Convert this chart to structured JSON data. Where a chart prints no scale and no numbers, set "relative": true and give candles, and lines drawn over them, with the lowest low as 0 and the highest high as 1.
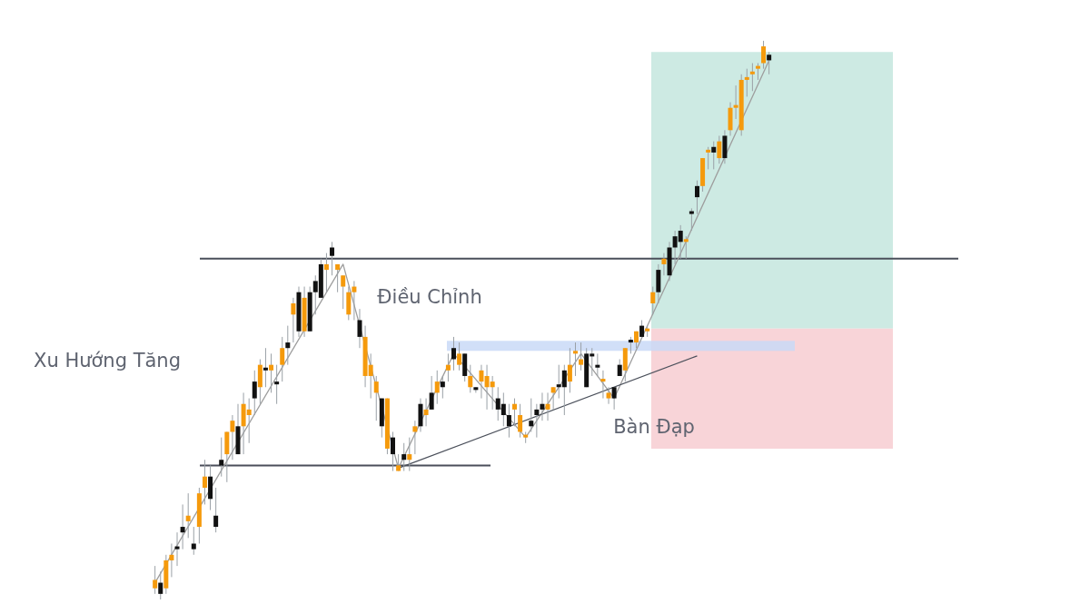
{
  "chart_data": {
    "type": "candlestick",
    "relative": true,
    "categories": [
      null,
      null,
      null,
      null,
      null,
      null,
      null,
      null,
      null,
      null,
      null,
      null,
      null,
      null,
      null,
      null,
      null,
      null,
      null,
      null,
      null,
      null,
      null,
      null,
      null,
      null,
      null,
      null,
      null,
      null,
      null,
      null,
      null,
      null,
      null,
      null,
      null,
      null,
      null,
      null,
      null,
      null,
      null,
      null,
      null,
      null,
      null,
      null,
      null,
      null,
      null,
      null,
      null,
      null,
      null,
      null,
      null,
      null,
      null,
      null,
      null,
      null,
      null,
      null,
      null,
      null,
      null,
      null,
      null,
      null,
      null,
      null,
      null,
      null,
      null,
      null,
      null,
      null,
      null,
      null,
      null,
      null,
      null,
      null,
      null,
      null,
      null,
      null,
      null,
      null,
      null,
      null,
      null,
      null,
      null,
      null,
      null,
      null,
      null,
      null,
      null,
      null,
      null,
      null,
      null,
      null,
      null,
      null,
      null,
      null,
      null,
      null
    ],
    "ohlc": [
      [
        0.02,
        0.06,
        0.01,
        0.035
      ],
      [
        0.03,
        0.05,
        0.0,
        0.01
      ],
      [
        0.02,
        0.08,
        0.01,
        0.07
      ],
      [
        0.07,
        0.1,
        0.04,
        0.08
      ],
      [
        0.095,
        0.12,
        0.06,
        0.09
      ],
      [
        0.13,
        0.17,
        0.09,
        0.12
      ],
      [
        0.14,
        0.19,
        0.11,
        0.15
      ],
      [
        0.1,
        0.13,
        0.08,
        0.09
      ],
      [
        0.13,
        0.2,
        0.1,
        0.19
      ],
      [
        0.2,
        0.25,
        0.17,
        0.22
      ],
      [
        0.22,
        0.24,
        0.16,
        0.18
      ],
      [
        0.15,
        0.2,
        0.12,
        0.13
      ],
      [
        0.25,
        0.29,
        0.22,
        0.24
      ],
      [
        0.26,
        0.3,
        0.21,
        0.3
      ],
      [
        0.3,
        0.33,
        0.25,
        0.32
      ],
      [
        0.31,
        0.35,
        0.26,
        0.26
      ],
      [
        0.31,
        0.37,
        0.26,
        0.35
      ],
      [
        0.33,
        0.36,
        0.28,
        0.34
      ],
      [
        0.39,
        0.41,
        0.33,
        0.36
      ],
      [
        0.38,
        0.43,
        0.35,
        0.42
      ],
      [
        0.415,
        0.45,
        0.38,
        0.41
      ],
      [
        0.41,
        0.44,
        0.37,
        0.42
      ],
      [
        0.39,
        0.42,
        0.35,
        0.385
      ],
      [
        0.42,
        0.47,
        0.39,
        0.45
      ],
      [
        0.46,
        0.49,
        0.42,
        0.45
      ],
      [
        0.51,
        0.54,
        0.46,
        0.53
      ],
      [
        0.55,
        0.56,
        0.47,
        0.48
      ],
      [
        0.48,
        0.56,
        0.47,
        0.54
      ],
      [
        0.55,
        0.56,
        0.48,
        0.48
      ],
      [
        0.57,
        0.58,
        0.51,
        0.55
      ],
      [
        0.6,
        0.61,
        0.54,
        0.54
      ],
      [
        0.59,
        0.62,
        0.55,
        0.6
      ],
      [
        0.63,
        0.64,
        0.58,
        0.615
      ],
      [
        0.59,
        0.6,
        0.55,
        0.6
      ],
      [
        0.56,
        0.58,
        0.52,
        0.58
      ],
      [
        0.51,
        0.56,
        0.5,
        0.55
      ],
      [
        0.55,
        0.57,
        0.5,
        0.56
      ],
      [
        0.5,
        0.52,
        0.45,
        0.47
      ],
      [
        0.4,
        0.49,
        0.38,
        0.47
      ],
      [
        0.4,
        0.44,
        0.36,
        0.42
      ],
      [
        0.37,
        0.4,
        0.32,
        0.39
      ],
      [
        0.36,
        0.36,
        0.29,
        0.31
      ],
      [
        0.27,
        0.36,
        0.26,
        0.36
      ],
      [
        0.29,
        0.3,
        0.23,
        0.26
      ],
      [
        0.23,
        0.26,
        0.23,
        0.24
      ],
      [
        0.26,
        0.28,
        0.23,
        0.25
      ],
      [
        0.25,
        0.29,
        0.23,
        0.26
      ],
      [
        0.3,
        0.32,
        0.26,
        0.31
      ],
      [
        0.35,
        0.36,
        0.3,
        0.31
      ],
      [
        0.33,
        0.36,
        0.31,
        0.34
      ],
      [
        0.37,
        0.4,
        0.34,
        0.34
      ],
      [
        0.37,
        0.41,
        0.35,
        0.39
      ],
      [
        0.39,
        0.4,
        0.36,
        0.38
      ],
      [
        0.41,
        0.44,
        0.39,
        0.42
      ],
      [
        0.45,
        0.47,
        0.41,
        0.43
      ],
      [
        0.42,
        0.46,
        0.41,
        0.44
      ],
      [
        0.44,
        0.44,
        0.39,
        0.4
      ],
      [
        0.38,
        0.42,
        0.37,
        0.4
      ],
      [
        0.38,
        0.38,
        0.37,
        0.375
      ],
      [
        0.39,
        0.42,
        0.36,
        0.41
      ],
      [
        0.38,
        0.42,
        0.34,
        0.4
      ],
      [
        0.38,
        0.4,
        0.34,
        0.39
      ],
      [
        0.36,
        0.38,
        0.32,
        0.34
      ],
      [
        0.35,
        0.37,
        0.31,
        0.33
      ],
      [
        0.33,
        0.35,
        0.29,
        0.31
      ],
      [
        0.34,
        0.36,
        0.31,
        0.35
      ],
      [
        0.3,
        0.35,
        0.29,
        0.33
      ],
      [
        0.29,
        0.3,
        0.28,
        0.295
      ],
      [
        0.32,
        0.36,
        0.3,
        0.31
      ],
      [
        0.34,
        0.35,
        0.29,
        0.33
      ],
      [
        0.35,
        0.37,
        0.32,
        0.34
      ],
      [
        0.34,
        0.37,
        0.32,
        0.35
      ],
      [
        0.37,
        0.38,
        0.34,
        0.38
      ],
      [
        0.385,
        0.42,
        0.36,
        0.38
      ],
      [
        0.41,
        0.42,
        0.33,
        0.38
      ],
      [
        0.39,
        0.45,
        0.37,
        0.42
      ],
      [
        0.44,
        0.46,
        0.4,
        0.445
      ],
      [
        0.42,
        0.46,
        0.41,
        0.43
      ],
      [
        0.44,
        0.45,
        0.38,
        0.38
      ],
      [
        0.44,
        0.45,
        0.4,
        0.435
      ],
      [
        0.42,
        0.44,
        0.4,
        0.415
      ],
      [
        0.39,
        0.41,
        0.36,
        0.395
      ],
      [
        0.36,
        0.38,
        0.35,
        0.37
      ],
      [
        0.38,
        0.38,
        0.34,
        0.36
      ],
      [
        0.42,
        0.43,
        0.4,
        0.4
      ],
      [
        0.41,
        0.45,
        0.39,
        0.45
      ],
      [
        0.465,
        0.47,
        0.44,
        0.46
      ],
      [
        0.46,
        0.48,
        0.45,
        0.48
      ],
      [
        0.49,
        0.5,
        0.47,
        0.47
      ],
      [
        0.48,
        0.49,
        0.47,
        0.485
      ],
      [
        0.53,
        0.56,
        0.51,
        0.55
      ],
      [
        0.59,
        0.6,
        0.53,
        0.55
      ],
      [
        0.6,
        0.62,
        0.58,
        0.61
      ],
      [
        0.63,
        0.64,
        0.57,
        0.58
      ],
      [
        0.65,
        0.66,
        0.6,
        0.63
      ],
      [
        0.66,
        0.67,
        0.61,
        0.64
      ],
      [
        0.64,
        0.65,
        0.61,
        0.645
      ],
      [
        0.695,
        0.7,
        0.66,
        0.69
      ],
      [
        0.74,
        0.75,
        0.69,
        0.72
      ],
      [
        0.74,
        0.79,
        0.73,
        0.79
      ],
      [
        0.8,
        0.81,
        0.77,
        0.805
      ],
      [
        0.81,
        0.82,
        0.77,
        0.8
      ],
      [
        0.79,
        0.83,
        0.78,
        0.82
      ],
      [
        0.83,
        0.84,
        0.78,
        0.79
      ],
      [
        0.84,
        0.89,
        0.83,
        0.88
      ],
      [
        0.88,
        0.92,
        0.86,
        0.885
      ],
      [
        0.84,
        0.94,
        0.83,
        0.93
      ],
      [
        0.93,
        0.95,
        0.9,
        0.935
      ],
      [
        0.94,
        0.96,
        0.91,
        0.945
      ],
      [
        0.95,
        0.96,
        0.93,
        0.955
      ],
      [
        0.96,
        1.0,
        0.95,
        0.99
      ],
      [
        0.975,
        0.98,
        0.94,
        0.965
      ]
    ],
    "colors": [
      "#f59a0c",
      "#111111",
      "#f59a0c",
      "#f59a0c",
      "#111111",
      "#111111",
      "#f59a0c",
      "#111111",
      "#f59a0c",
      "#f59a0c",
      "#111111",
      "#111111",
      "#111111",
      "#f59a0c",
      "#f59a0c",
      "#111111",
      "#f59a0c",
      "#f59a0c",
      "#111111",
      "#f59a0c",
      "#111111",
      "#f59a0c",
      "#111111",
      "#f59a0c",
      "#111111",
      "#f59a0c",
      "#111111",
      "#f59a0c",
      "#111111",
      "#111111",
      "#111111",
      "#f59a0c",
      "#111111",
      "#f59a0c",
      "#f59a0c",
      "#f59a0c",
      "#f59a0c",
      "#111111",
      "#f59a0c",
      "#f59a0c",
      "#f59a0c",
      "#111111",
      "#f59a0c",
      "#111111",
      "#f59a0c",
      "#111111",
      "#f59a0c",
      "#f59a0c",
      "#111111",
      "#f59a0c",
      "#111111",
      "#f59a0c",
      "#111111",
      "#f59a0c",
      "#111111",
      "#f59a0c",
      "#111111",
      "#f59a0c",
      "#111111",
      "#f59a0c",
      "#f59a0c",
      "#f59a0c",
      "#111111",
      "#111111",
      "#111111",
      "#f59a0c",
      "#f59a0c",
      "#f59a0c",
      "#111111",
      "#111111",
      "#111111",
      "#f59a0c",
      "#f59a0c",
      "#111111",
      "#111111",
      "#f59a0c",
      "#f59a0c",
      "#f59a0c",
      "#111111",
      "#111111",
      "#111111",
      "#f59a0c",
      "#f59a0c",
      "#111111",
      "#111111",
      "#f59a0c",
      "#111111",
      "#f59a0c",
      "#111111",
      "#f59a0c",
      "#f59a0c",
      "#111111",
      "#f59a0c",
      "#111111",
      "#111111",
      "#111111",
      "#f59a0c",
      "#111111",
      "#111111",
      "#f59a0c",
      "#f59a0c",
      "#111111",
      "#f59a0c",
      "#111111",
      "#f59a0c",
      "#f59a0c",
      "#f59a0c",
      "#f59a0c",
      "#f59a0c",
      "#f59a0c",
      "#f59a0c",
      "#111111"
    ],
    "series": [
      {
        "type": "line",
        "color": "#9e9e9e",
        "values": [
          0.03,
          null,
          null,
          null,
          null,
          null,
          null,
          null,
          null,
          null,
          null,
          null,
          null,
          null,
          null,
          null,
          null,
          null,
          null,
          null,
          null,
          null,
          null,
          null,
          null,
          null,
          null,
          null,
          null,
          null,
          null,
          null,
          null,
          null,
          0.6,
          null,
          null,
          null,
          null,
          null,
          null,
          null,
          null,
          null,
          0.235,
          null,
          null,
          null,
          null,
          null,
          null,
          null,
          null,
          null,
          0.44,
          null,
          null,
          null,
          null,
          null,
          null,
          null,
          null,
          null,
          null,
          null,
          null,
          0.29,
          null,
          null,
          null,
          null,
          null,
          null,
          null,
          null,
          null,
          0.44,
          null,
          null,
          null,
          null,
          null,
          0.36,
          null,
          null,
          null,
          null,
          null,
          null,
          null,
          null,
          null,
          null,
          null,
          null,
          null,
          null,
          null,
          null,
          null,
          null,
          null,
          null,
          null,
          null,
          null,
          null,
          null,
          null,
          null,
          0.965
        ]
      },
      {
        "type": "line",
        "color": "#4a4f5a",
        "values": [
          null,
          null,
          null,
          null,
          null,
          null,
          null,
          null,
          null,
          null,
          null,
          null,
          null,
          null,
          null,
          null,
          null,
          null,
          null,
          null,
          null,
          null,
          null,
          null,
          null,
          null,
          null,
          null,
          null,
          null,
          null,
          null,
          null,
          null,
          null,
          null,
          null,
          null,
          null,
          null,
          null,
          null,
          null,
          null,
          0.235,
          null,
          null,
          null,
          null,
          null,
          null,
          null,
          null,
          null,
          null,
          null,
          null,
          null,
          null,
          null,
          null,
          null,
          null,
          null,
          null,
          null,
          null,
          null,
          null,
          null,
          null,
          null,
          null,
          null,
          null,
          null,
          null,
          null,
          null,
          null,
          null,
          null,
          null,
          null,
          null,
          null,
          null,
          null,
          null,
          null,
          null,
          null,
          null,
          null,
          null,
          null,
          null,
          null,
          0.436,
          null,
          null,
          null,
          null,
          null,
          null,
          null,
          null,
          null,
          null,
          null,
          null,
          null
        ]
      }
    ],
    "ref_lines": [
      {
        "axis": "y",
        "value": 0.61,
        "color": "#4a4f5a"
      },
      {
        "axis": "y",
        "value": 0.24,
        "color": "#4a4f5a"
      }
    ],
    "bands": [
      {
        "axis": "y",
        "from": 0.485,
        "to": 0.98,
        "color": "#cdeae3"
      },
      {
        "axis": "y",
        "from": 0.27,
        "to": 0.485,
        "color": "#f8d4d8"
      },
      {
        "axis": "y",
        "from": 0.445,
        "to": 0.463,
        "color": "#c9d9f7"
      }
    ],
    "annotations": [
      "Xu Hướng Tăng",
      "Điều Chỉnh",
      "Bàn Đạp"
    ]
  }
}
